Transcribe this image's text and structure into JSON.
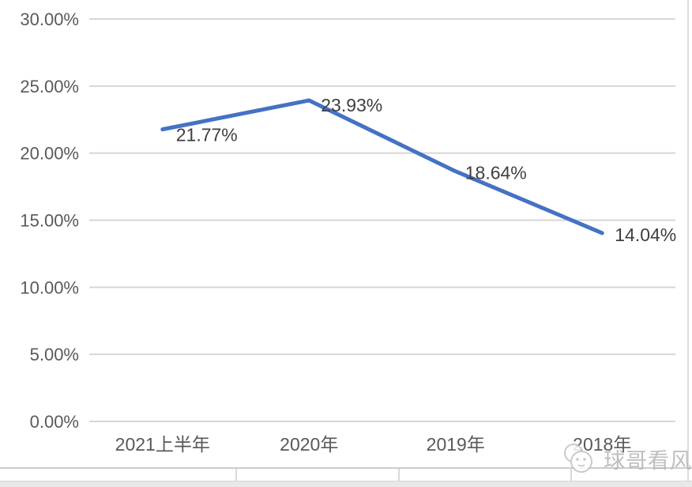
{
  "chart_data": {
    "type": "line",
    "title": "",
    "xlabel": "",
    "ylabel": "",
    "categories": [
      "2021上半年",
      "2020年",
      "2019年",
      "2018年"
    ],
    "values": [
      21.77,
      23.93,
      18.64,
      14.04
    ],
    "point_labels": [
      "21.77%",
      "23.93%",
      "18.64%",
      "14.04%"
    ],
    "y_ticks": [
      {
        "value": 0,
        "label": "0.00%"
      },
      {
        "value": 5,
        "label": "5.00%"
      },
      {
        "value": 10,
        "label": "10.00%"
      },
      {
        "value": 15,
        "label": "15.00%"
      },
      {
        "value": 20,
        "label": "20.00%"
      },
      {
        "value": 25,
        "label": "25.00%"
      },
      {
        "value": 30,
        "label": "30.00%"
      }
    ],
    "ylim": [
      0,
      30
    ],
    "grid": true,
    "legend_position": "none",
    "line_color": "#4472C4",
    "grid_color": "#d6d6d6",
    "axis_text_color": "#595959",
    "label_text_color": "#3f3f3f"
  },
  "watermark": {
    "text": "球哥看风"
  }
}
